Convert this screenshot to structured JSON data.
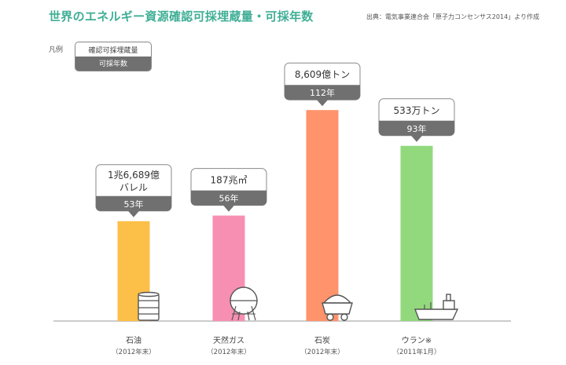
{
  "title": "世界のエネルギー資源確認可採埋蔵量・可採年数",
  "source": "出典：電気事業連合会「原子力コンセンサス2014」より作成",
  "legend": {
    "label": "凡例",
    "reserves_label": "確認可採埋蔵量",
    "years_label": "可採年数"
  },
  "colors": {
    "title": "#3fae95",
    "oil": "#fcbf47",
    "gas": "#f78fb3",
    "coal": "#fe936c",
    "uranium": "#92d97d",
    "years_box": "#707070"
  },
  "chart_data": {
    "type": "bar",
    "categories": [
      "石油",
      "天然ガス",
      "石炭",
      "ウラン※"
    ],
    "category_notes": [
      "（2012年末）",
      "（2012年末）",
      "（2012年末）",
      "（2011年1月）"
    ],
    "values": [
      53,
      56,
      112,
      93
    ],
    "value_labels": [
      "53年",
      "56年",
      "112年",
      "93年"
    ],
    "reserves_labels": [
      [
        "1兆6,689億",
        "バレル"
      ],
      [
        "187兆㎥"
      ],
      [
        "8,609億トン"
      ],
      [
        "533万トン"
      ]
    ],
    "icons": [
      "oil-drum-icon",
      "gas-tank-icon",
      "coal-cart-icon",
      "ship-icon"
    ],
    "ylim": [
      0,
      125
    ],
    "grid": false,
    "legend_position": "top-left"
  }
}
